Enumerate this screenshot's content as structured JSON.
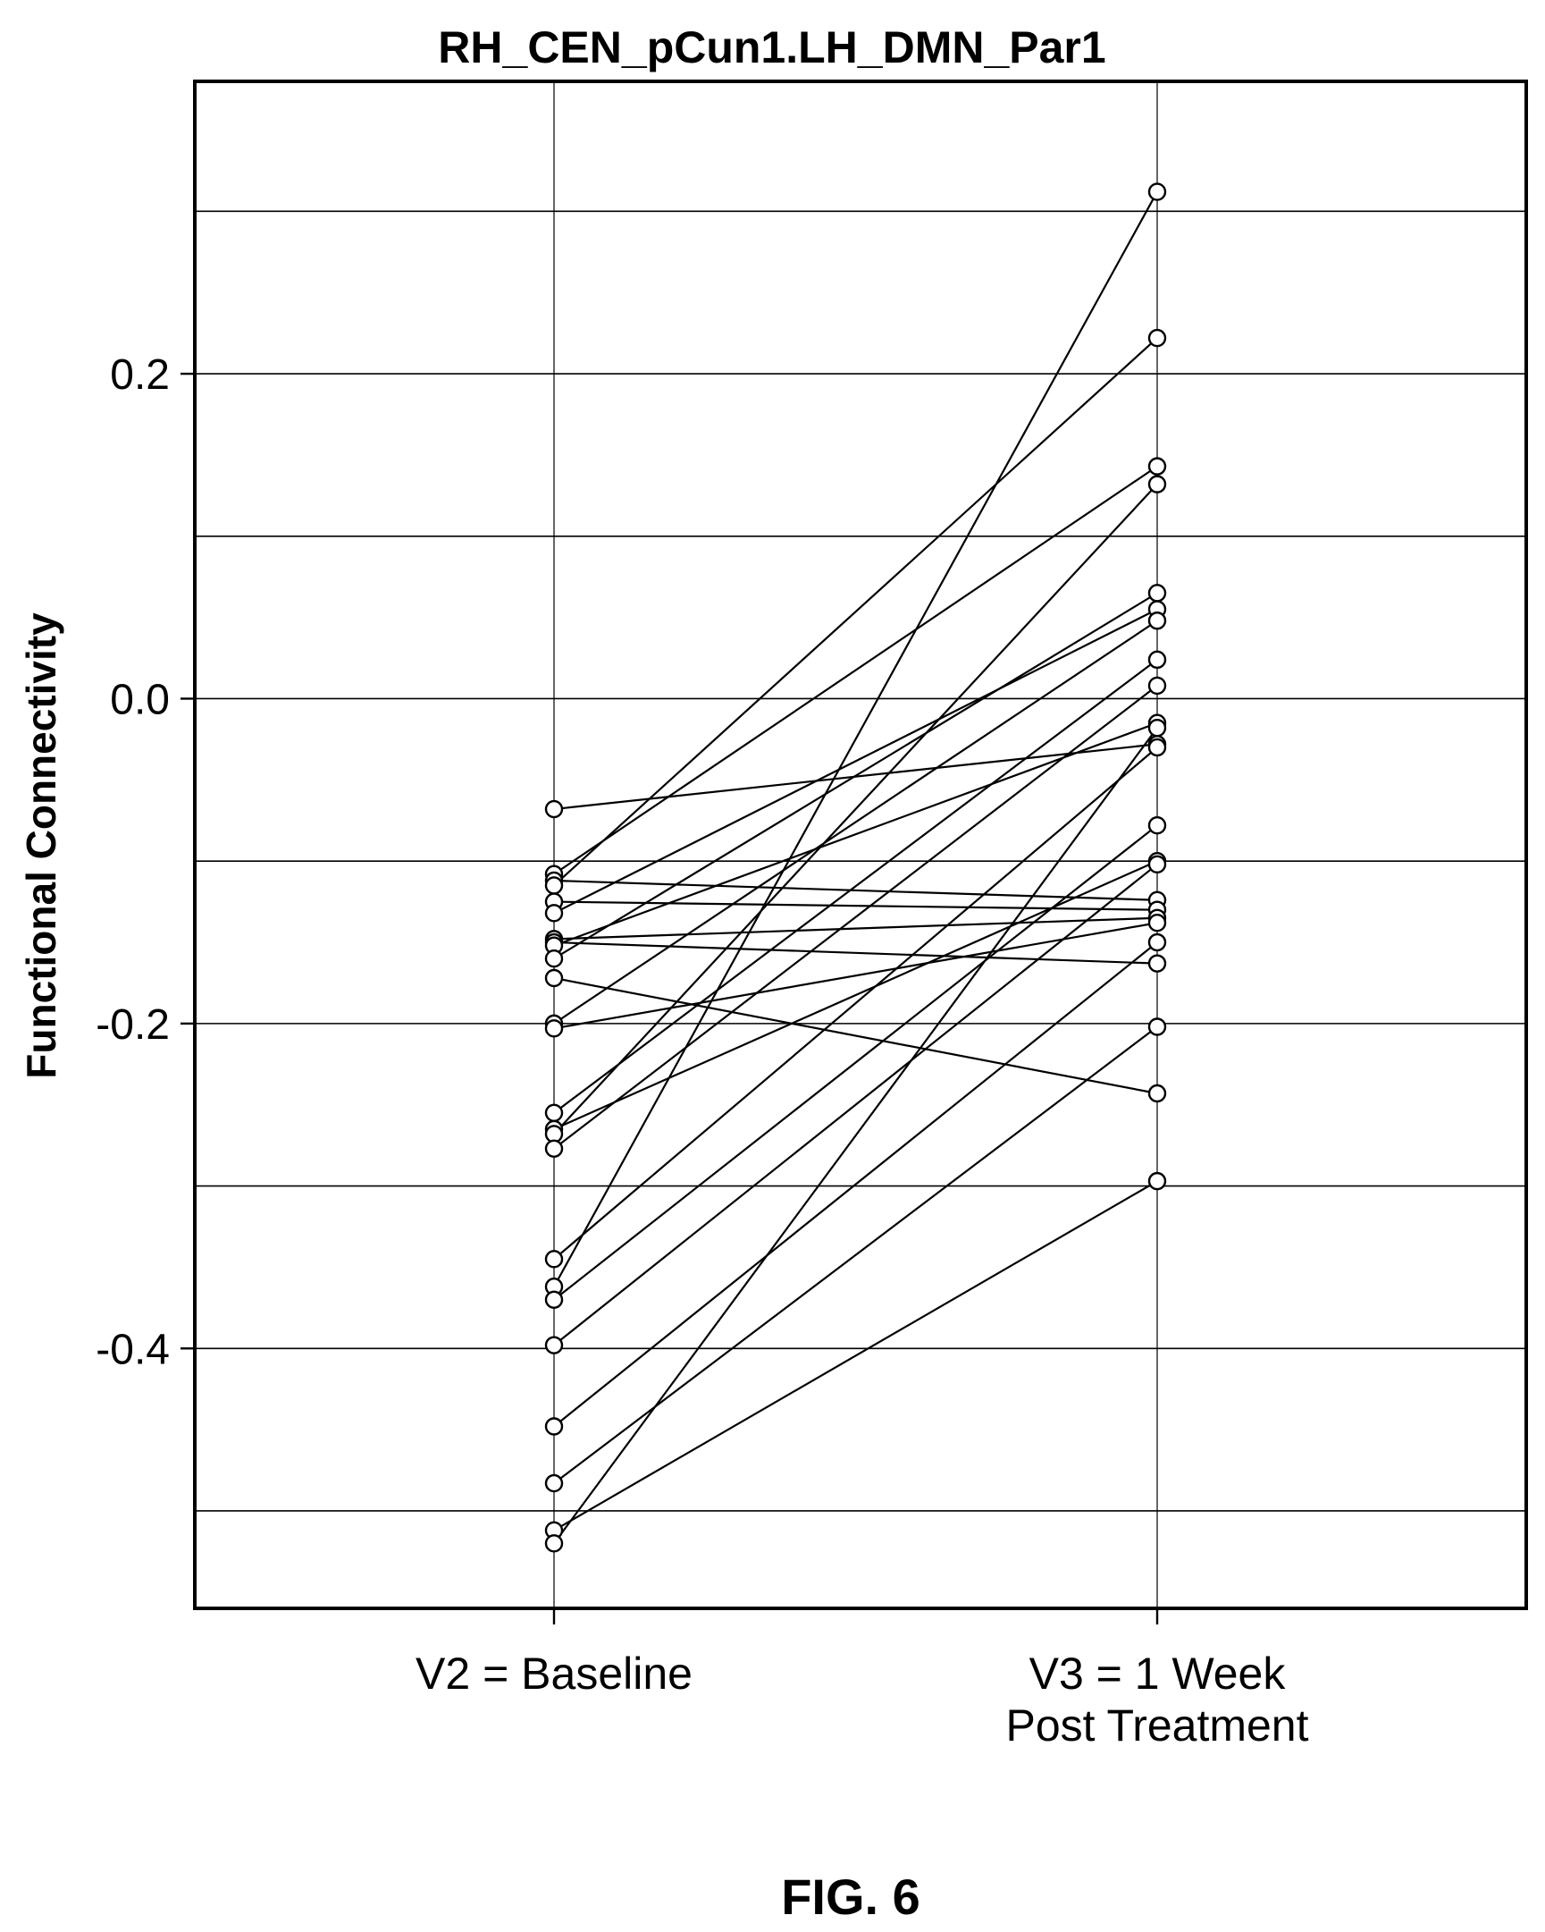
{
  "figure_label": "FIG. 6",
  "chart_data": {
    "type": "line",
    "title": "RH_CEN_pCun1.LH_DMN_Par1",
    "ylabel": "Functional Connectivity",
    "xlabel": "",
    "categories": [
      "V2 = Baseline",
      "V3 = 1 Week Post Treatment"
    ],
    "category_lines": [
      [
        "V2 = Baseline"
      ],
      [
        "V3 = 1 Week",
        "Post Treatment"
      ]
    ],
    "ylim": [
      -0.56,
      0.38
    ],
    "yticks": [
      -0.4,
      -0.2,
      0.0,
      0.2
    ],
    "ytick_labels": [
      "-0.4",
      "-0.2",
      "0.0",
      "0.2"
    ],
    "grid": true,
    "grid_y": [
      -0.5,
      -0.4,
      -0.3,
      -0.2,
      -0.1,
      0.0,
      0.1,
      0.2,
      0.3
    ],
    "line_color": "#000000",
    "marker": "open-circle",
    "pairs": [
      [
        -0.068,
        -0.028
      ],
      [
        -0.108,
        0.143
      ],
      [
        -0.112,
        -0.124
      ],
      [
        -0.115,
        0.222
      ],
      [
        -0.125,
        -0.13
      ],
      [
        -0.132,
        0.055
      ],
      [
        -0.148,
        -0.135
      ],
      [
        -0.15,
        -0.163
      ],
      [
        -0.152,
        -0.015
      ],
      [
        -0.16,
        0.065
      ],
      [
        -0.172,
        -0.243
      ],
      [
        -0.2,
        0.048
      ],
      [
        -0.203,
        -0.138
      ],
      [
        -0.255,
        0.024
      ],
      [
        -0.265,
        -0.1
      ],
      [
        -0.268,
        0.132
      ],
      [
        -0.277,
        0.008
      ],
      [
        -0.345,
        -0.03
      ],
      [
        -0.362,
        0.312
      ],
      [
        -0.37,
        -0.078
      ],
      [
        -0.398,
        -0.102
      ],
      [
        -0.448,
        -0.15
      ],
      [
        -0.483,
        -0.202
      ],
      [
        -0.512,
        -0.297
      ],
      [
        -0.52,
        -0.018
      ]
    ]
  }
}
